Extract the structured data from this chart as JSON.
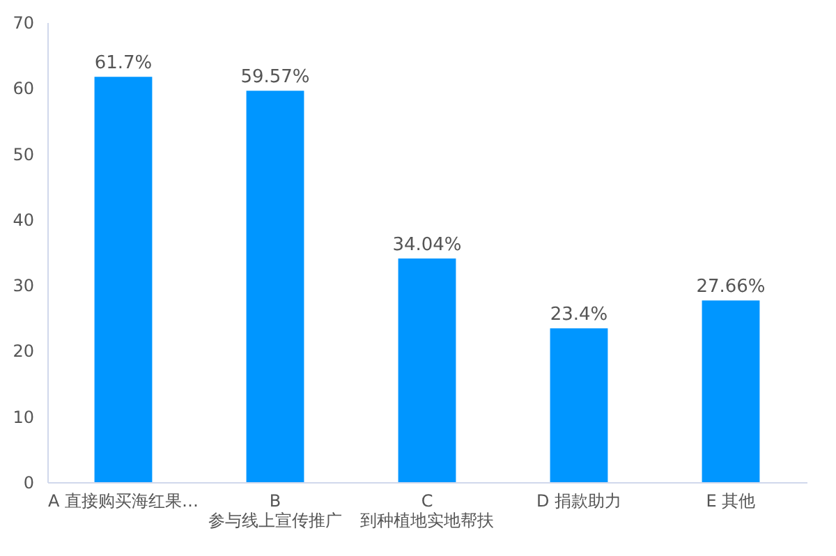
{
  "chart_data": {
    "type": "bar",
    "categories": [
      "A 直接购买海红果…",
      "B\n参与线上宣传推广",
      "C\n到种植地实地帮扶",
      "D 捐款助力",
      "E 其他"
    ],
    "values": [
      61.7,
      59.57,
      34.04,
      23.4,
      27.66
    ],
    "value_labels": [
      "61.7%",
      "59.57%",
      "34.04%",
      "23.4%",
      "27.66%"
    ],
    "color": "#0096ff",
    "ylim": [
      0,
      70
    ],
    "yticks": [
      0,
      10,
      20,
      30,
      40,
      50,
      60,
      70
    ],
    "grid": false
  }
}
